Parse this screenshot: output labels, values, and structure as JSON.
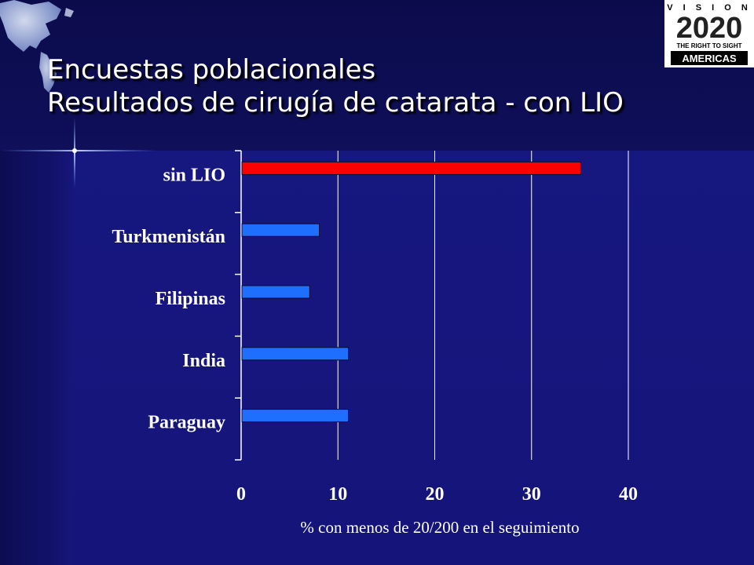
{
  "slide": {
    "title_line1": "Encuestas poblacionales",
    "title_line2": "Resultados de cirugía de catarata - con LIO",
    "logo": {
      "top_text": "V I S I O N",
      "big_text": "2020",
      "tagline": "THE RIGHT TO SIGHT",
      "region": "AMERICAS"
    },
    "colors": {
      "background": "#16167a",
      "highlight_bar": "#ff0000",
      "bar": "#1f6fff"
    },
    "icons": [
      "globe-americas-icon",
      "sparkle-star-icon"
    ]
  },
  "chart_data": {
    "type": "bar",
    "orientation": "horizontal",
    "categories": [
      "sin LIO",
      "Turkmenistán",
      "Filipinas",
      "India",
      "Paraguay"
    ],
    "values": [
      35,
      8,
      7,
      11,
      11
    ],
    "bar_colors": [
      "#ff0000",
      "#1f6fff",
      "#1f6fff",
      "#1f6fff",
      "#1f6fff"
    ],
    "xlabel": "% con menos de 20/200 en el seguimiento",
    "xlim": [
      0,
      40
    ],
    "xticks": [
      0,
      10,
      20,
      30,
      40
    ],
    "grid": "vertical"
  }
}
